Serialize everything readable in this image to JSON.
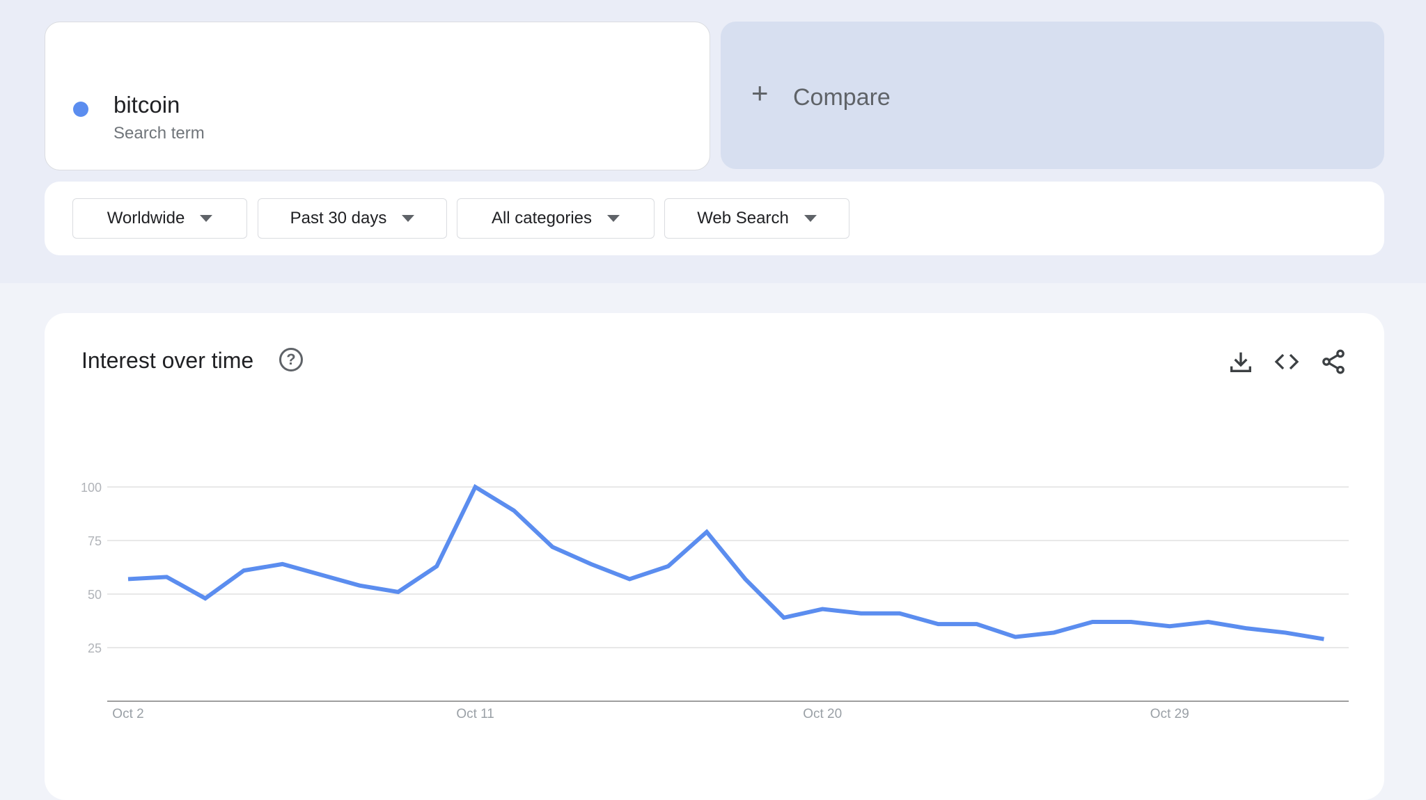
{
  "search": {
    "term": "bitcoin",
    "term_type": "Search term",
    "term_color": "#5b8def",
    "compare_label": "Compare"
  },
  "filters": [
    {
      "label": "Worldwide"
    },
    {
      "label": "Past 30 days"
    },
    {
      "label": "All categories"
    },
    {
      "label": "Web Search"
    }
  ],
  "panel": {
    "title": "Interest over time",
    "help_icon": "?",
    "icons": [
      "download-icon",
      "embed-code-icon",
      "share-icon"
    ]
  },
  "chart_data": {
    "type": "line",
    "title": "",
    "xlabel": "",
    "ylabel": "",
    "x": [
      "Oct 2",
      "Oct 3",
      "Oct 4",
      "Oct 5",
      "Oct 6",
      "Oct 7",
      "Oct 8",
      "Oct 9",
      "Oct 10",
      "Oct 11",
      "Oct 12",
      "Oct 13",
      "Oct 14",
      "Oct 15",
      "Oct 16",
      "Oct 17",
      "Oct 18",
      "Oct 19",
      "Oct 20",
      "Oct 21",
      "Oct 22",
      "Oct 23",
      "Oct 24",
      "Oct 25",
      "Oct 26",
      "Oct 27",
      "Oct 28",
      "Oct 29",
      "Oct 30",
      "Oct 31",
      "Nov 1",
      "Nov 2"
    ],
    "series": [
      {
        "name": "bitcoin",
        "color": "#5b8def",
        "values": [
          57,
          58,
          48,
          61,
          64,
          59,
          54,
          51,
          63,
          100,
          89,
          72,
          64,
          57,
          63,
          79,
          57,
          39,
          43,
          41,
          41,
          36,
          36,
          30,
          32,
          37,
          37,
          35,
          37,
          34,
          32,
          29
        ]
      }
    ],
    "xtick_labels": [
      "Oct 2",
      "Oct 11",
      "Oct 20",
      "Oct 29"
    ],
    "ytick_labels": [
      "25",
      "50",
      "75",
      "100"
    ],
    "ylim": [
      0,
      100
    ],
    "grid": true
  }
}
